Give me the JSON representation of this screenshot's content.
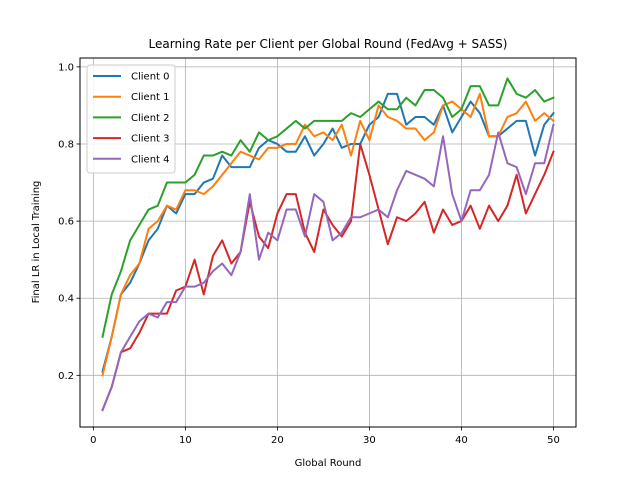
{
  "chart_data": {
    "type": "line",
    "title": "Learning Rate per Client per Global Round (FedAvg + SASS)",
    "xlabel": "Global Round",
    "ylabel": "Final LR in Local Training",
    "xlim": [
      -1.45,
      52.45
    ],
    "ylim": [
      0.066,
      1.023
    ],
    "xticks": [
      0,
      10,
      20,
      30,
      40,
      50
    ],
    "yticks": [
      0.2,
      0.4,
      0.6,
      0.8,
      1.0
    ],
    "ytick_labels": [
      "0.2",
      "0.4",
      "0.6",
      "0.8",
      "1.0"
    ],
    "grid": true,
    "legend_position": "top-left",
    "x": [
      1,
      2,
      3,
      4,
      5,
      6,
      7,
      8,
      9,
      10,
      11,
      12,
      13,
      14,
      15,
      16,
      17,
      18,
      19,
      20,
      21,
      22,
      23,
      24,
      25,
      26,
      27,
      28,
      29,
      30,
      31,
      32,
      33,
      34,
      35,
      36,
      37,
      38,
      39,
      40,
      41,
      42,
      43,
      44,
      45,
      46,
      47,
      48,
      49,
      50
    ],
    "series": [
      {
        "name": "Client 0",
        "color": "#1f77b4",
        "values": [
          0.21,
          0.3,
          0.41,
          0.44,
          0.49,
          0.55,
          0.58,
          0.64,
          0.62,
          0.67,
          0.67,
          0.7,
          0.71,
          0.77,
          0.74,
          0.74,
          0.74,
          0.79,
          0.81,
          0.8,
          0.78,
          0.78,
          0.82,
          0.77,
          0.8,
          0.84,
          0.79,
          0.8,
          0.8,
          0.85,
          0.87,
          0.93,
          0.93,
          0.85,
          0.87,
          0.87,
          0.85,
          0.9,
          0.83,
          0.87,
          0.91,
          0.88,
          0.82,
          0.82,
          0.84,
          0.86,
          0.86,
          0.77,
          0.85,
          0.88
        ]
      },
      {
        "name": "Client 1",
        "color": "#ff7f0e",
        "values": [
          0.2,
          0.3,
          0.41,
          0.46,
          0.49,
          0.58,
          0.6,
          0.64,
          0.63,
          0.68,
          0.68,
          0.67,
          0.69,
          0.72,
          0.75,
          0.78,
          0.77,
          0.76,
          0.79,
          0.79,
          0.8,
          0.8,
          0.85,
          0.82,
          0.83,
          0.81,
          0.85,
          0.77,
          0.86,
          0.81,
          0.9,
          0.87,
          0.86,
          0.84,
          0.84,
          0.81,
          0.83,
          0.9,
          0.91,
          0.89,
          0.87,
          0.93,
          0.82,
          0.82,
          0.87,
          0.88,
          0.91,
          0.86,
          0.88,
          0.86
        ]
      },
      {
        "name": "Client 2",
        "color": "#2ca02c",
        "values": [
          0.3,
          0.41,
          0.47,
          0.55,
          0.59,
          0.63,
          0.64,
          0.7,
          0.7,
          0.7,
          0.72,
          0.77,
          0.77,
          0.78,
          0.77,
          0.81,
          0.78,
          0.83,
          0.81,
          0.82,
          0.84,
          0.86,
          0.84,
          0.86,
          0.86,
          0.86,
          0.86,
          0.88,
          0.87,
          0.89,
          0.91,
          0.89,
          0.89,
          0.92,
          0.9,
          0.94,
          0.94,
          0.92,
          0.87,
          0.89,
          0.95,
          0.95,
          0.9,
          0.9,
          0.97,
          0.93,
          0.92,
          0.94,
          0.91,
          0.92
        ]
      },
      {
        "name": "Client 3",
        "color": "#d62728",
        "values": [
          0.11,
          0.17,
          0.26,
          0.27,
          0.31,
          0.36,
          0.36,
          0.36,
          0.42,
          0.43,
          0.5,
          0.41,
          0.51,
          0.55,
          0.49,
          0.52,
          0.65,
          0.56,
          0.53,
          0.62,
          0.67,
          0.67,
          0.57,
          0.52,
          0.63,
          0.59,
          0.56,
          0.6,
          0.8,
          0.72,
          0.63,
          0.54,
          0.61,
          0.6,
          0.62,
          0.65,
          0.57,
          0.63,
          0.59,
          0.6,
          0.64,
          0.58,
          0.64,
          0.6,
          0.64,
          0.72,
          0.62,
          0.67,
          0.72,
          0.78
        ]
      },
      {
        "name": "Client 4",
        "color": "#9467bd",
        "values": [
          0.11,
          0.17,
          0.26,
          0.3,
          0.34,
          0.36,
          0.35,
          0.39,
          0.39,
          0.43,
          0.43,
          0.44,
          0.47,
          0.49,
          0.46,
          0.52,
          0.67,
          0.5,
          0.57,
          0.55,
          0.63,
          0.63,
          0.56,
          0.67,
          0.65,
          0.55,
          0.57,
          0.61,
          0.61,
          0.62,
          0.63,
          0.61,
          0.68,
          0.73,
          0.72,
          0.71,
          0.69,
          0.82,
          0.67,
          0.6,
          0.68,
          0.68,
          0.72,
          0.83,
          0.75,
          0.74,
          0.67,
          0.75,
          0.75,
          0.85
        ]
      }
    ]
  }
}
